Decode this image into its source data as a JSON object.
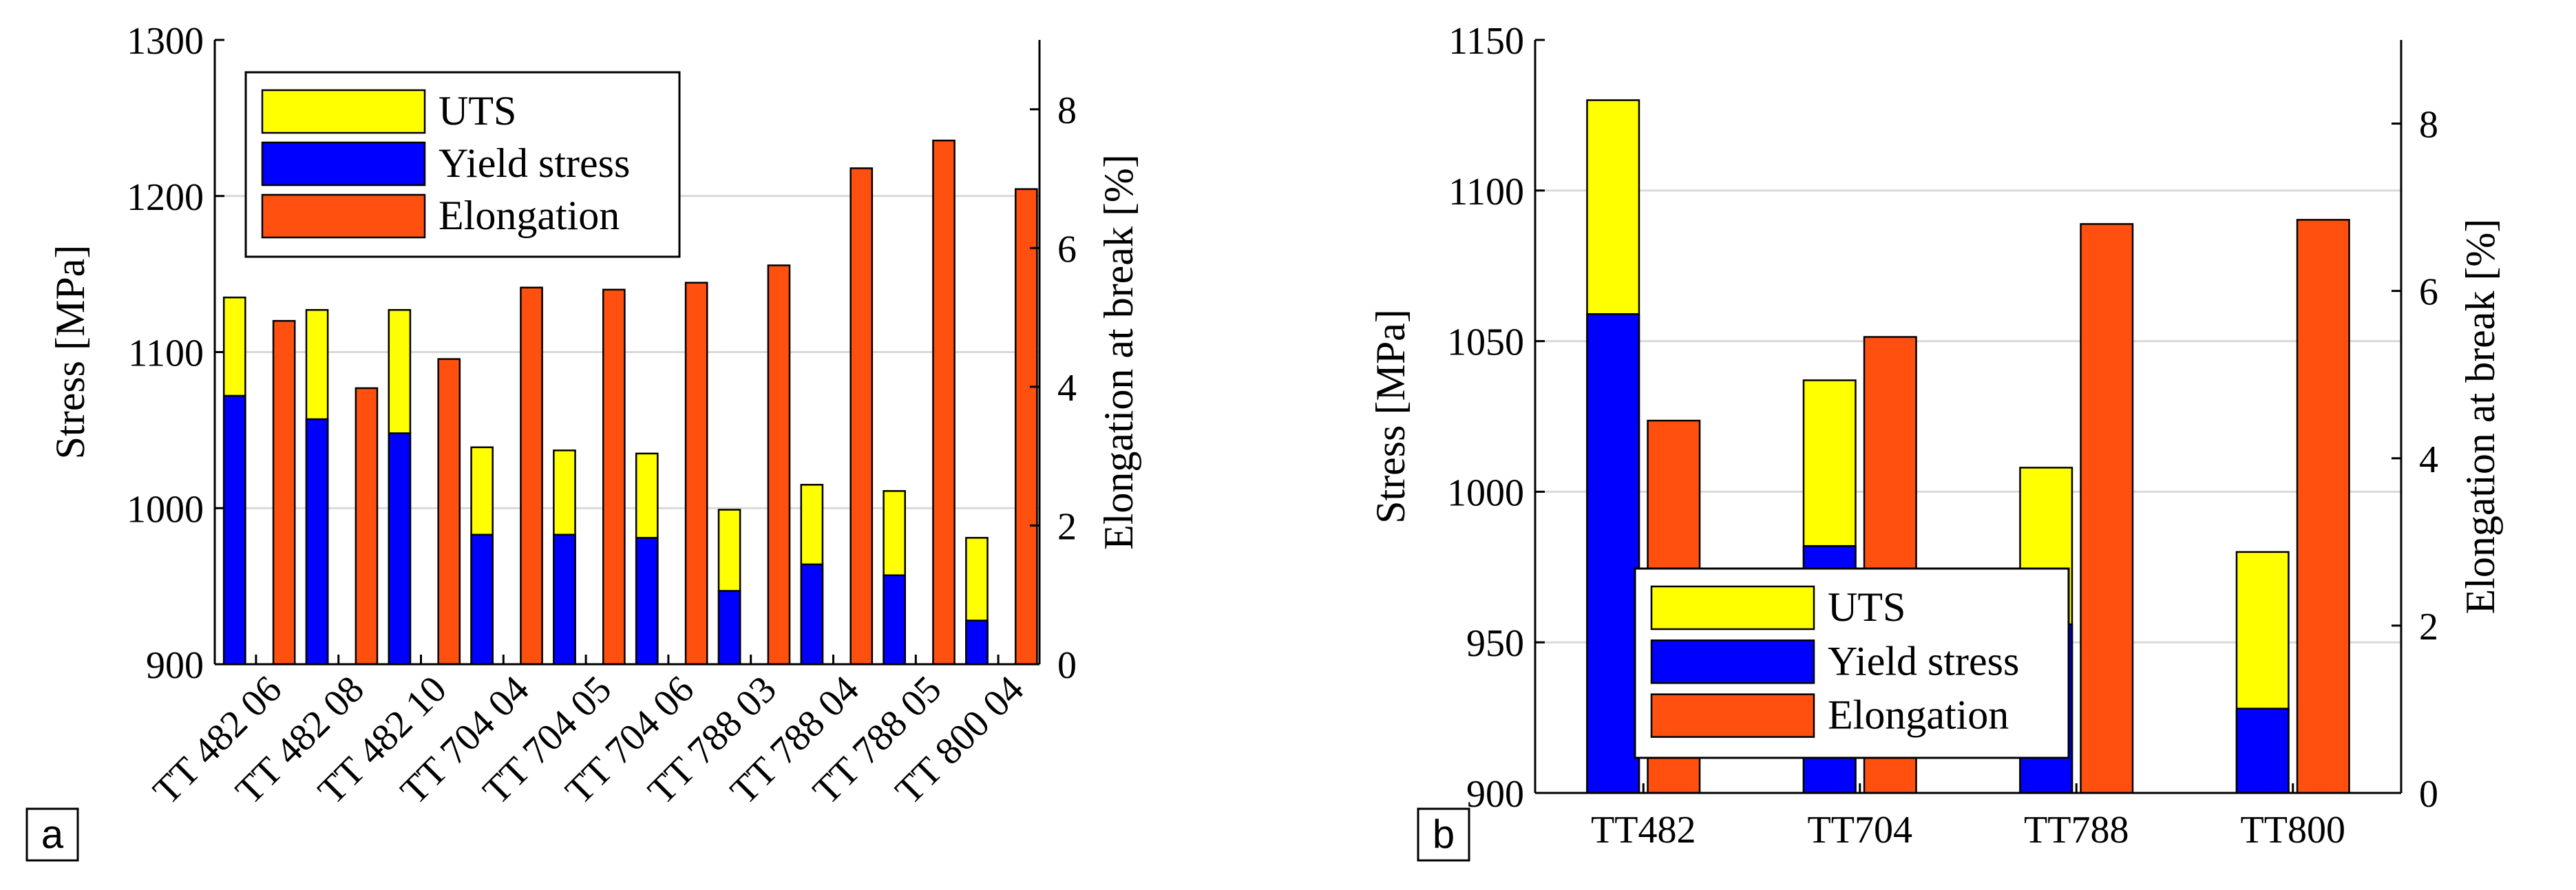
{
  "chart_data": [
    {
      "panel_label": "a",
      "type": "bar",
      "categories": [
        "TT 482 06",
        "TT 482 08",
        "TT 482 10",
        "TT 704 04",
        "TT 704 05",
        "TT 704 06",
        "TT 788 03",
        "TT 788 04",
        "TT 788 05",
        "TT 800 04"
      ],
      "series": [
        {
          "name": "UTS",
          "color": "#ffff00",
          "axis": "left",
          "values": [
            1135,
            1127,
            1127,
            1039,
            1037,
            1035,
            999,
            1015,
            1011,
            981
          ]
        },
        {
          "name": "Yield stress",
          "color": "#0000ff",
          "axis": "left",
          "values": [
            1072,
            1057,
            1048,
            983,
            983,
            981,
            947,
            964,
            957,
            928
          ]
        },
        {
          "name": "Elongation",
          "color": "#ff5010",
          "axis": "right",
          "values": [
            4.95,
            3.98,
            4.4,
            5.43,
            5.4,
            5.5,
            5.75,
            7.15,
            7.55,
            6.85
          ]
        }
      ],
      "ylabel": "Stress [MPa]",
      "ylabel_right": "Elongation at break [%]",
      "ylim": [
        900,
        1300
      ],
      "yticks": [
        "900",
        "1000",
        "1100",
        "1200",
        "1300"
      ],
      "ylim_right": [
        0,
        9
      ],
      "yticks_right": [
        "0",
        "2",
        "4",
        "6",
        "8"
      ],
      "legend": [
        "UTS",
        "Yield stress",
        "Elongation"
      ],
      "legend_position": "top-left",
      "grid": true
    },
    {
      "panel_label": "b",
      "type": "bar",
      "categories": [
        "TT482",
        "TT704",
        "TT788",
        "TT800"
      ],
      "series": [
        {
          "name": "UTS",
          "color": "#ffff00",
          "axis": "left",
          "values": [
            1130,
            1037,
            1008,
            980
          ]
        },
        {
          "name": "Yield stress",
          "color": "#0000ff",
          "axis": "left",
          "values": [
            1059,
            982,
            956,
            928
          ]
        },
        {
          "name": "Elongation",
          "color": "#ff5010",
          "axis": "right",
          "values": [
            4.45,
            5.45,
            6.8,
            6.85
          ]
        }
      ],
      "ylabel": "Stress [MPa]",
      "ylabel_right": "Elongation at break [%]",
      "ylim": [
        900,
        1150
      ],
      "yticks": [
        "900",
        "950",
        "1000",
        "1050",
        "1100",
        "1150"
      ],
      "ylim_right": [
        0,
        9
      ],
      "yticks_right": [
        "0",
        "2",
        "4",
        "6",
        "8"
      ],
      "legend": [
        "UTS",
        "Yield stress",
        "Elongation"
      ],
      "legend_position": "bottom-left",
      "grid": true
    }
  ]
}
